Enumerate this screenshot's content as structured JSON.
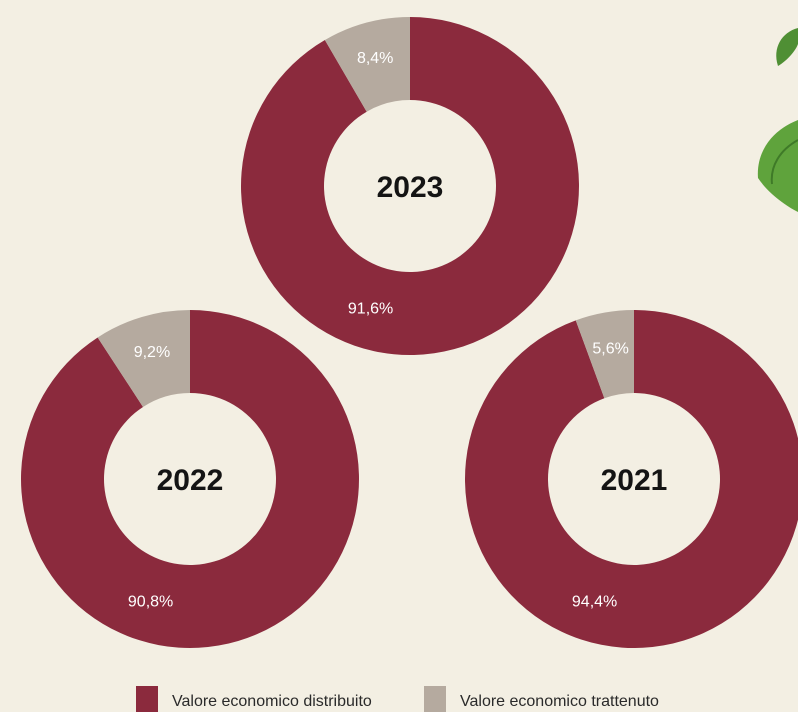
{
  "chart_data": {
    "type": "pie",
    "series_names": [
      "Valore economico distribuito",
      "Valore economico trattenuto"
    ],
    "colors": {
      "distributed": "#8b2a3d",
      "retained": "#b5aa9f",
      "background": "#f3efe3",
      "leaf": "#5a9a3a"
    },
    "donuts": [
      {
        "center_label": "2023",
        "distributed": 91.6,
        "retained": 8.4,
        "distributed_label": "91,6%",
        "retained_label": "8,4%"
      },
      {
        "center_label": "2022",
        "distributed": 90.8,
        "retained": 9.2,
        "distributed_label": "90,8%",
        "retained_label": "9,2%"
      },
      {
        "center_label": "2021",
        "distributed": 94.4,
        "retained": 5.6,
        "distributed_label": "94,4%",
        "retained_label": "5,6%"
      }
    ],
    "legend": [
      {
        "label": "Valore economico distribuito",
        "color": "#8b2a3d"
      },
      {
        "label": "Valore economico trattenuto",
        "color": "#b5aa9f"
      }
    ]
  }
}
